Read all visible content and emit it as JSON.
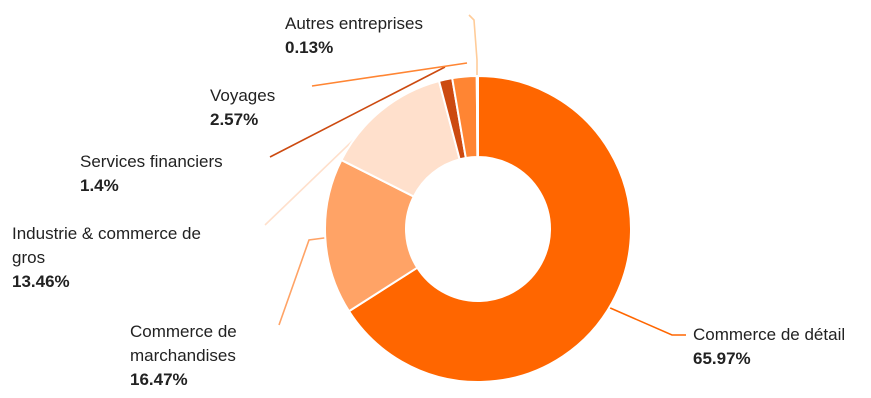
{
  "chart_data": {
    "type": "pie",
    "variant": "donut",
    "title": "",
    "slices": [
      {
        "label": "Commerce de détail",
        "value": 65.97,
        "display": "65.97%",
        "color": "#ff6600"
      },
      {
        "label": "Commerce de marchandises",
        "value": 16.47,
        "display": "16.47%",
        "color": "#ffa366"
      },
      {
        "label": "Industrie & commerce de gros",
        "value": 13.46,
        "display": "13.46%",
        "color": "#ffe0cc"
      },
      {
        "label": "Services financiers",
        "value": 1.4,
        "display": "1.4%",
        "color": "#cc4a10"
      },
      {
        "label": "Voyages",
        "value": 2.57,
        "display": "2.57%",
        "color": "#ff8533"
      },
      {
        "label": "Autres entreprises",
        "value": 0.13,
        "display": "0.13%",
        "color": "#ffcc99"
      }
    ],
    "labels_display": [
      {
        "lines": [
          "Commerce de détail"
        ],
        "pct": "65.97%"
      },
      {
        "lines": [
          "Commerce de",
          "marchandises"
        ],
        "pct": "16.47%"
      },
      {
        "lines": [
          "Industrie & commerce de",
          "gros"
        ],
        "pct": "13.46%"
      },
      {
        "lines": [
          "Services financiers"
        ],
        "pct": "1.4%"
      },
      {
        "lines": [
          "Voyages"
        ],
        "pct": "2.57%"
      },
      {
        "lines": [
          "Autres entreprises"
        ],
        "pct": "0.13%"
      }
    ]
  }
}
